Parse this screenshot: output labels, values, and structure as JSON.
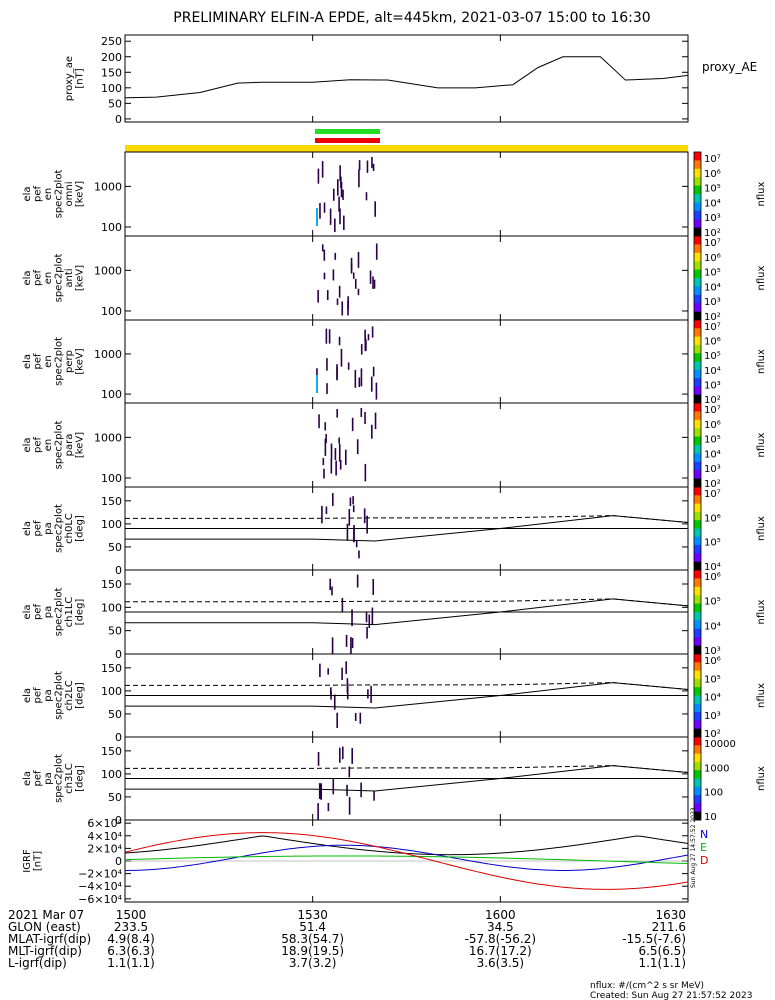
{
  "title": "PRELIMINARY ELFIN-A EPDE, alt=445km, 2021-03-07 15:00 to 16:30",
  "footer": {
    "units": "nflux: #/(cm^2 s sr MeV)",
    "created": "Created: Sun Aug 27 21:57:52 2023",
    "side_stamp": "Sun Aug 27 14:57:52 2023"
  },
  "colors": {
    "axis": "#000000",
    "trace": "#000000",
    "science_zone_bar": "#ffd800",
    "science_zone_top": "#22dd22",
    "science_zone_bottom": "#ee0000",
    "spectro_dot": "#2a0048",
    "igrf_n": "#0000cc",
    "igrf_e": "#00bb00",
    "igrf_d": "#dd0000"
  },
  "time_axis": {
    "ticks": [
      "1500",
      "1530",
      "1600",
      "1630"
    ],
    "tick_minutes": [
      0,
      30,
      60,
      90
    ]
  },
  "ephemeris": {
    "rows": [
      {
        "label": "2021 Mar 07",
        "values": [
          "1500",
          "1530",
          "1600",
          "1630"
        ]
      },
      {
        "label": "GLON (east)",
        "values": [
          "233.5",
          "51.4",
          "34.5",
          "211.6"
        ]
      },
      {
        "label": "MLAT-igrf(dip)",
        "values": [
          "4.9(8.4)",
          "58.3(54.7)",
          "-57.8(-56.2)",
          "-15.5(-7.6)"
        ]
      },
      {
        "label": "MLT-igrf(dip)",
        "values": [
          "6.3(6.3)",
          "18.9(19.5)",
          "16.7(17.2)",
          "6.5(6.5)"
        ]
      },
      {
        "label": "L-igrf(dip)",
        "values": [
          "1.1(1.1)",
          "3.7(3.2)",
          "3.6(3.5)",
          "1.1(1.1)"
        ]
      }
    ]
  },
  "chart_data": [
    {
      "type": "line",
      "panel": "proxy_ae",
      "ylabel": [
        "proxy_ae",
        "[nT]"
      ],
      "yticks": [
        "250",
        "200",
        "150",
        "100",
        "50",
        "0"
      ],
      "ylim": [
        -10,
        270
      ],
      "legend": "proxy_AE",
      "x_minutes": [
        0,
        5,
        12,
        18,
        22,
        30,
        36,
        42,
        50,
        56,
        62,
        66,
        70,
        76,
        80,
        86,
        90
      ],
      "values": [
        68,
        70,
        85,
        115,
        118,
        118,
        126,
        125,
        100,
        100,
        110,
        165,
        200,
        200,
        125,
        130,
        140
      ]
    },
    {
      "type": "heatmap",
      "panel": "spectrogram",
      "ylabel": [
        "ela",
        "pef",
        "en",
        "spec2plot",
        "omni",
        "[keV]"
      ],
      "yticks": [
        "1000",
        "100"
      ],
      "ylim": [
        60,
        7000
      ],
      "colorbar": {
        "label": "nflux",
        "ticks": [
          "10⁷",
          "10⁶",
          "10⁵",
          "10⁴",
          "10³",
          "10²"
        ]
      }
    },
    {
      "type": "heatmap",
      "panel": "spectrogram",
      "ylabel": [
        "ela",
        "pef",
        "en",
        "spec2plot",
        "anti",
        "[keV]"
      ],
      "yticks": [
        "1000",
        "100"
      ],
      "ylim": [
        60,
        7000
      ],
      "colorbar": {
        "label": "nflux",
        "ticks": [
          "10⁷",
          "10⁶",
          "10⁵",
          "10⁴",
          "10³",
          "10²"
        ]
      }
    },
    {
      "type": "heatmap",
      "panel": "spectrogram",
      "ylabel": [
        "ela",
        "pef",
        "en",
        "spec2plot",
        "perp",
        "[keV]"
      ],
      "yticks": [
        "1000",
        "100"
      ],
      "ylim": [
        60,
        7000
      ],
      "colorbar": {
        "label": "nflux",
        "ticks": [
          "10⁷",
          "10⁶",
          "10⁵",
          "10⁴",
          "10³",
          "10²"
        ]
      }
    },
    {
      "type": "heatmap",
      "panel": "spectrogram",
      "ylabel": [
        "ela",
        "pef",
        "en",
        "spec2plot",
        "para",
        "[keV]"
      ],
      "yticks": [
        "1000",
        "100"
      ],
      "ylim": [
        60,
        7000
      ],
      "colorbar": {
        "label": "nflux",
        "ticks": [
          "10⁷",
          "10⁶",
          "10⁵",
          "10⁴",
          "10³",
          "10²"
        ]
      }
    },
    {
      "type": "heatmap",
      "panel": "pitch",
      "ylabel": [
        "ela",
        "pef",
        "pa",
        "spec2plot",
        "ch0LC",
        "[deg]"
      ],
      "yticks": [
        "150",
        "100",
        "50",
        "0"
      ],
      "ylim": [
        0,
        180
      ],
      "colorbar": {
        "label": "nflux",
        "ticks": [
          "10⁷",
          "10⁶",
          "10⁵",
          "10⁴"
        ]
      }
    },
    {
      "type": "heatmap",
      "panel": "pitch",
      "ylabel": [
        "ela",
        "pef",
        "pa",
        "spec2plot",
        "ch1LC",
        "[deg]"
      ],
      "yticks": [
        "150",
        "100",
        "50",
        "0"
      ],
      "ylim": [
        0,
        180
      ],
      "colorbar": {
        "label": "nflux",
        "ticks": [
          "10⁶",
          "10⁵",
          "10⁴",
          "10³"
        ]
      }
    },
    {
      "type": "heatmap",
      "panel": "pitch",
      "ylabel": [
        "ela",
        "pef",
        "pa",
        "spec2plot",
        "ch2LC",
        "[deg]"
      ],
      "yticks": [
        "150",
        "100",
        "50",
        "0"
      ],
      "ylim": [
        0,
        180
      ],
      "colorbar": {
        "label": "nflux",
        "ticks": [
          "10⁶",
          "10⁵",
          "10⁴",
          "10³",
          "10²"
        ]
      }
    },
    {
      "type": "heatmap",
      "panel": "pitch",
      "ylabel": [
        "ela",
        "pef",
        "pa",
        "spec2plot",
        "ch3LC",
        "[deg]"
      ],
      "yticks": [
        "150",
        "100",
        "50",
        "0"
      ],
      "ylim": [
        0,
        180
      ],
      "colorbar": {
        "label": "nflux",
        "ticks": [
          "10000",
          "1000",
          "100",
          "10"
        ]
      }
    },
    {
      "type": "line",
      "panel": "igrf",
      "ylabel": [
        "IGRF",
        "[nT]"
      ],
      "yticks": [
        "6×10⁴",
        "4×10⁴",
        "2×10⁴",
        "0",
        "−2×10⁴",
        "−4×10⁴",
        "−6×10⁴"
      ],
      "ylim": [
        -65000,
        65000
      ],
      "series_labels": [
        "N",
        "E",
        "D"
      ]
    }
  ]
}
